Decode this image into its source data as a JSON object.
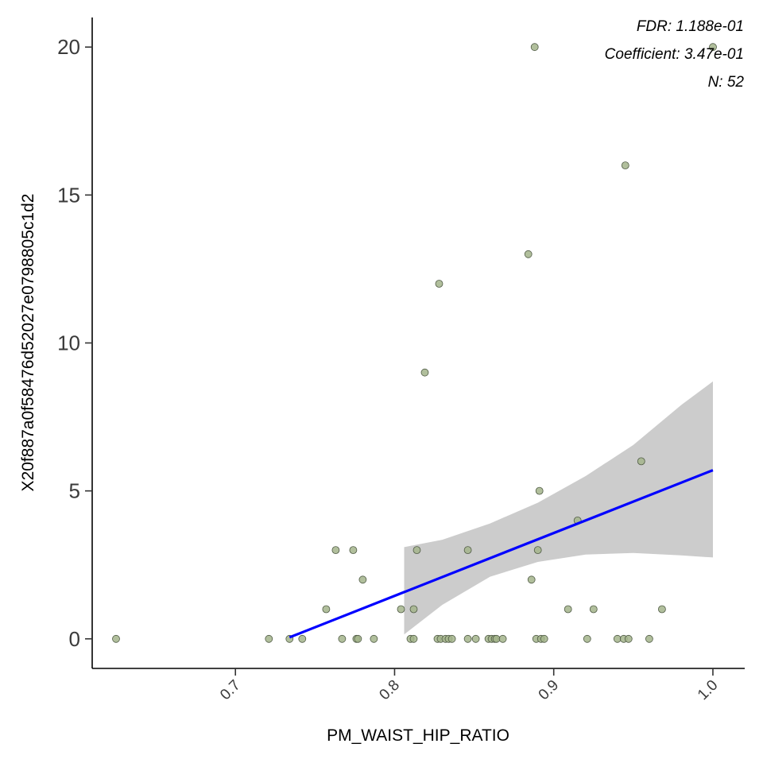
{
  "chart_data": {
    "type": "scatter",
    "xlabel": "PM_WAIST_HIP_RATIO",
    "ylabel": "X20f887a0f58476d52027e0798805c1d2",
    "xlim": [
      0.61,
      1.02
    ],
    "ylim": [
      -1.0,
      21.0
    ],
    "xticks": [
      0.7,
      0.8,
      0.9,
      1.0
    ],
    "xtick_labels": [
      "0.7",
      "0.8",
      "0.9",
      "1.0"
    ],
    "yticks": [
      0,
      5,
      10,
      15,
      20
    ],
    "ytick_labels": [
      "0",
      "5",
      "10",
      "15",
      "20"
    ],
    "annotations": [
      "FDR: 1.188e-01",
      "Coefficient: 3.47e-01",
      "N: 52"
    ],
    "grid": false,
    "colors": {
      "point": "#a3b48b",
      "point_stroke": "#4f5a45",
      "fit_line": "#0000ff",
      "band": "#cccccc"
    },
    "points": [
      {
        "x": 0.625,
        "y": 0
      },
      {
        "x": 0.721,
        "y": 0
      },
      {
        "x": 0.734,
        "y": 0
      },
      {
        "x": 0.742,
        "y": 0
      },
      {
        "x": 0.757,
        "y": 1
      },
      {
        "x": 0.763,
        "y": 3
      },
      {
        "x": 0.767,
        "y": 0
      },
      {
        "x": 0.774,
        "y": 3
      },
      {
        "x": 0.776,
        "y": 0
      },
      {
        "x": 0.777,
        "y": 0
      },
      {
        "x": 0.78,
        "y": 2
      },
      {
        "x": 0.787,
        "y": 0
      },
      {
        "x": 0.804,
        "y": 1
      },
      {
        "x": 0.81,
        "y": 0
      },
      {
        "x": 0.812,
        "y": 1
      },
      {
        "x": 0.812,
        "y": 0
      },
      {
        "x": 0.814,
        "y": 3
      },
      {
        "x": 0.819,
        "y": 9
      },
      {
        "x": 0.827,
        "y": 0
      },
      {
        "x": 0.828,
        "y": 12
      },
      {
        "x": 0.829,
        "y": 0
      },
      {
        "x": 0.832,
        "y": 0
      },
      {
        "x": 0.834,
        "y": 0
      },
      {
        "x": 0.836,
        "y": 0
      },
      {
        "x": 0.846,
        "y": 3
      },
      {
        "x": 0.846,
        "y": 0
      },
      {
        "x": 0.851,
        "y": 0
      },
      {
        "x": 0.859,
        "y": 0
      },
      {
        "x": 0.861,
        "y": 0
      },
      {
        "x": 0.863,
        "y": 0
      },
      {
        "x": 0.864,
        "y": 0
      },
      {
        "x": 0.868,
        "y": 0
      },
      {
        "x": 0.884,
        "y": 13
      },
      {
        "x": 0.886,
        "y": 2
      },
      {
        "x": 0.888,
        "y": 20
      },
      {
        "x": 0.889,
        "y": 0
      },
      {
        "x": 0.89,
        "y": 3
      },
      {
        "x": 0.891,
        "y": 5
      },
      {
        "x": 0.892,
        "y": 0
      },
      {
        "x": 0.894,
        "y": 0
      },
      {
        "x": 0.909,
        "y": 1
      },
      {
        "x": 0.915,
        "y": 4
      },
      {
        "x": 0.921,
        "y": 0
      },
      {
        "x": 0.925,
        "y": 1
      },
      {
        "x": 0.94,
        "y": 0
      },
      {
        "x": 0.944,
        "y": 0
      },
      {
        "x": 0.945,
        "y": 16
      },
      {
        "x": 0.947,
        "y": 0
      },
      {
        "x": 0.955,
        "y": 6
      },
      {
        "x": 0.96,
        "y": 0
      },
      {
        "x": 0.968,
        "y": 1
      },
      {
        "x": 1.0,
        "y": 20
      }
    ],
    "fit_line": [
      {
        "x": 0.734,
        "y": 0.05
      },
      {
        "x": 1.0,
        "y": 5.7
      }
    ],
    "confidence_band": [
      {
        "x": 0.806,
        "lower": 0.15,
        "upper": 3.1
      },
      {
        "x": 0.83,
        "lower": 1.15,
        "upper": 3.35
      },
      {
        "x": 0.86,
        "lower": 2.1,
        "upper": 3.9
      },
      {
        "x": 0.89,
        "lower": 2.6,
        "upper": 4.6
      },
      {
        "x": 0.92,
        "lower": 2.85,
        "upper": 5.5
      },
      {
        "x": 0.95,
        "lower": 2.9,
        "upper": 6.55
      },
      {
        "x": 0.98,
        "lower": 2.82,
        "upper": 7.9
      },
      {
        "x": 1.0,
        "lower": 2.75,
        "upper": 8.7
      }
    ]
  }
}
